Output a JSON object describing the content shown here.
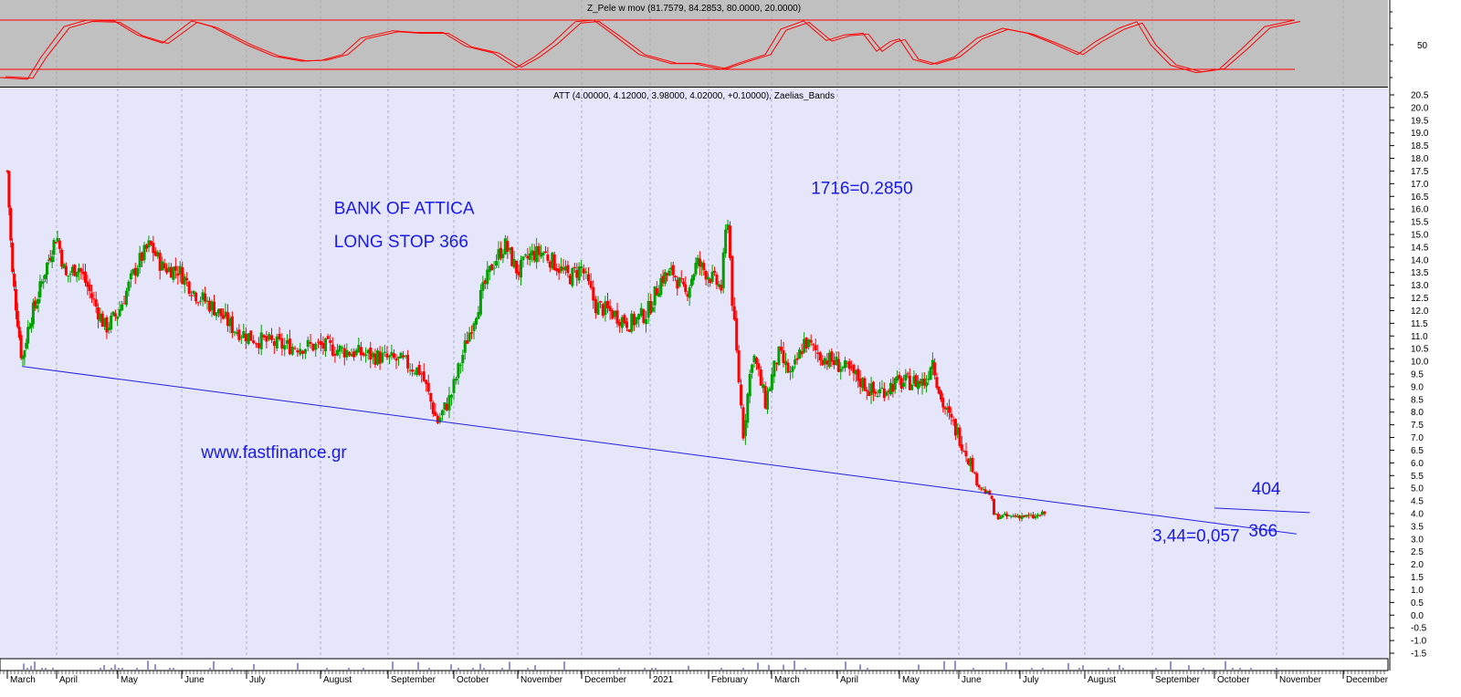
{
  "chart_data": [
    {
      "type": "line",
      "title": "Z_Pele w mov (81.7579, 84.2853, 80.0000, 20.0000)",
      "levels": [
        80,
        20
      ],
      "ylim": [
        0,
        100
      ],
      "yticks": [
        50
      ],
      "colors": {
        "background": "#c0c0c0",
        "line": "#ff0000",
        "level": "#ff0000"
      }
    },
    {
      "type": "candlestick",
      "title": "ATT (4.00000, 4.12000, 3.98000, 4.02000, +0.10000), Zaelias_Bands",
      "ylim": [
        -1.5,
        20.5
      ],
      "yticks": [
        -1.5,
        -1.0,
        -0.5,
        0.0,
        0.5,
        1.0,
        1.5,
        2.0,
        2.5,
        3.0,
        3.5,
        4.0,
        4.5,
        5.0,
        5.5,
        6.0,
        6.5,
        7.0,
        7.5,
        8.0,
        8.5,
        9.0,
        9.5,
        10.0,
        10.5,
        11.0,
        11.5,
        12.0,
        12.5,
        13.0,
        13.5,
        14.0,
        14.5,
        15.0,
        15.5,
        16.0,
        16.5,
        17.0,
        17.5,
        18.0,
        18.5,
        19.0,
        19.5,
        20.0,
        20.5
      ],
      "months": [
        "March",
        "April",
        "May",
        "June",
        "July",
        "August",
        "September",
        "October",
        "November",
        "December",
        "2021",
        "February",
        "March",
        "April",
        "May",
        "June",
        "July",
        "August",
        "September",
        "October",
        "November",
        "December"
      ],
      "trendlines": [
        {
          "name": "support",
          "from": {
            "month_index": 0.3,
            "y": 9.8
          },
          "to": {
            "month_index": 20.3,
            "y": 3.2
          }
        },
        {
          "name": "upper channel",
          "from": {
            "month_index": 19.0,
            "y": 4.22
          },
          "to": {
            "month_index": 20.5,
            "y": 4.04
          }
        }
      ],
      "price_path": [
        [
          0.0,
          17.5
        ],
        [
          0.1,
          13.5
        ],
        [
          0.2,
          11.8
        ],
        [
          0.3,
          10.0
        ],
        [
          0.45,
          11.6
        ],
        [
          0.6,
          12.4
        ],
        [
          0.8,
          13.8
        ],
        [
          1.0,
          15.0
        ],
        [
          1.15,
          13.3
        ],
        [
          1.35,
          13.8
        ],
        [
          1.6,
          12.4
        ],
        [
          1.8,
          11.3
        ],
        [
          2.0,
          11.9
        ],
        [
          2.3,
          13.8
        ],
        [
          2.5,
          14.6
        ],
        [
          2.7,
          13.7
        ],
        [
          2.95,
          13.6
        ],
        [
          3.2,
          12.7
        ],
        [
          3.5,
          12.1
        ],
        [
          3.8,
          11.3
        ],
        [
          4.1,
          10.9
        ],
        [
          4.5,
          10.6
        ],
        [
          5.0,
          10.6
        ],
        [
          5.4,
          10.4
        ],
        [
          5.8,
          10.2
        ],
        [
          6.2,
          10.0
        ],
        [
          6.5,
          9.6
        ],
        [
          6.75,
          7.6
        ],
        [
          6.95,
          8.6
        ],
        [
          7.2,
          10.8
        ],
        [
          7.4,
          12.4
        ],
        [
          7.6,
          13.8
        ],
        [
          7.8,
          14.6
        ],
        [
          8.0,
          13.5
        ],
        [
          8.2,
          14.2
        ],
        [
          8.4,
          14.3
        ],
        [
          8.6,
          13.8
        ],
        [
          8.8,
          13.3
        ],
        [
          9.0,
          13.7
        ],
        [
          9.2,
          12.2
        ],
        [
          9.45,
          11.9
        ],
        [
          9.7,
          11.5
        ],
        [
          9.95,
          11.9
        ],
        [
          10.2,
          13.3
        ],
        [
          10.4,
          13.5
        ],
        [
          10.6,
          12.6
        ],
        [
          10.8,
          13.9
        ],
        [
          11.0,
          13.4
        ],
        [
          11.2,
          12.9
        ],
        [
          11.3,
          15.9
        ],
        [
          11.38,
          12.2
        ],
        [
          11.55,
          7.2
        ],
        [
          11.7,
          10.4
        ],
        [
          11.9,
          8.4
        ],
        [
          12.1,
          10.3
        ],
        [
          12.3,
          9.4
        ],
        [
          12.5,
          10.8
        ],
        [
          12.75,
          10.2
        ],
        [
          13.0,
          9.9
        ],
        [
          13.3,
          9.4
        ],
        [
          13.6,
          8.7
        ],
        [
          13.9,
          9.1
        ],
        [
          14.2,
          9.2
        ],
        [
          14.45,
          9.2
        ],
        [
          14.55,
          10.2
        ],
        [
          14.7,
          8.5
        ],
        [
          14.85,
          7.7
        ],
        [
          15.0,
          7.1
        ],
        [
          15.15,
          6.3
        ],
        [
          15.3,
          5.2
        ],
        [
          15.45,
          4.8
        ],
        [
          15.52,
          4.75
        ],
        [
          15.58,
          3.9
        ],
        [
          15.8,
          3.88
        ],
        [
          16.0,
          3.92
        ],
        [
          16.2,
          3.85
        ],
        [
          16.4,
          4.02
        ]
      ],
      "annotations": [
        {
          "text": "BANK OF ATTICA",
          "month_index": 5.2,
          "y": 15.8
        },
        {
          "text": "LONG STOP 366",
          "month_index": 5.2,
          "y": 14.5
        },
        {
          "text": "1716=0.2850",
          "month_index": 12.6,
          "y": 16.6
        },
        {
          "text": "www.fastfinance.gr",
          "month_index": 3.3,
          "y": 6.2
        },
        {
          "text": "404",
          "month_index": 19.6,
          "y": 4.75
        },
        {
          "text": "3,44=0,057",
          "month_index": 18.0,
          "y": 2.9
        },
        {
          "text": "366",
          "month_index": 19.55,
          "y": 3.1
        }
      ],
      "colors": {
        "background": "#e6e6fa",
        "up": "#00a000",
        "down": "#ff0000",
        "trendline": "#2222e0",
        "grid": "#a0a0c0",
        "annotation": "#1a1ae6"
      }
    }
  ]
}
